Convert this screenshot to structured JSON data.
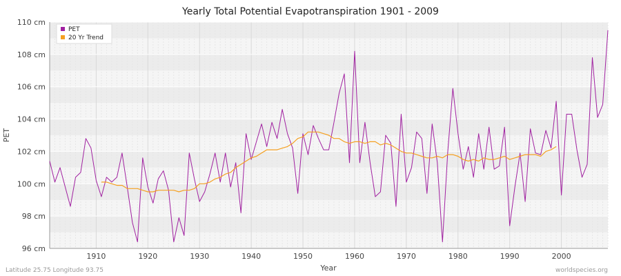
{
  "chart_data": {
    "type": "line",
    "title": "Yearly Total Potential Evapotranspiration 1901 - 2009",
    "xlabel": "Year",
    "ylabel": "PET",
    "xlim": [
      1901,
      2009
    ],
    "ylim": [
      96,
      110
    ],
    "y_unit": "cm",
    "y_ticks": [
      96,
      98,
      100,
      102,
      104,
      106,
      108,
      110
    ],
    "x_ticks": [
      1910,
      1920,
      1930,
      1940,
      1950,
      1960,
      1970,
      1980,
      1990,
      2000
    ],
    "grid": true,
    "legend_position": "top-left",
    "series": [
      {
        "name": "PET",
        "color": "#a020a0",
        "x": [
          1901,
          1902,
          1903,
          1904,
          1905,
          1906,
          1907,
          1908,
          1909,
          1910,
          1911,
          1912,
          1913,
          1914,
          1915,
          1916,
          1917,
          1918,
          1919,
          1920,
          1921,
          1922,
          1923,
          1924,
          1925,
          1926,
          1927,
          1928,
          1929,
          1930,
          1931,
          1932,
          1933,
          1934,
          1935,
          1936,
          1937,
          1938,
          1939,
          1940,
          1941,
          1942,
          1943,
          1944,
          1945,
          1946,
          1947,
          1948,
          1949,
          1950,
          1951,
          1952,
          1953,
          1954,
          1955,
          1956,
          1957,
          1958,
          1959,
          1960,
          1961,
          1962,
          1963,
          1964,
          1965,
          1966,
          1967,
          1968,
          1969,
          1970,
          1971,
          1972,
          1973,
          1974,
          1975,
          1976,
          1977,
          1978,
          1979,
          1980,
          1981,
          1982,
          1983,
          1984,
          1985,
          1986,
          1987,
          1988,
          1989,
          1990,
          1991,
          1992,
          1993,
          1994,
          1995,
          1996,
          1997,
          1998,
          1999,
          2000,
          2001,
          2002,
          2003,
          2004,
          2005,
          2006,
          2007,
          2008,
          2009
        ],
        "values": [
          101.4,
          100.1,
          101.0,
          99.8,
          98.6,
          100.4,
          100.7,
          102.8,
          102.2,
          100.2,
          99.2,
          100.4,
          100.1,
          100.4,
          101.9,
          99.8,
          97.6,
          96.4,
          101.6,
          99.8,
          98.8,
          100.3,
          100.8,
          99.6,
          96.4,
          97.9,
          96.8,
          101.9,
          100.3,
          98.9,
          99.5,
          100.6,
          101.9,
          100.1,
          101.9,
          99.8,
          101.3,
          98.2,
          103.1,
          101.5,
          102.6,
          103.7,
          102.3,
          103.8,
          102.8,
          104.6,
          103.1,
          102.2,
          99.4,
          103.1,
          101.8,
          103.6,
          102.8,
          102.1,
          102.1,
          103.8,
          105.6,
          106.8,
          101.3,
          108.2,
          101.3,
          103.8,
          101.3,
          99.2,
          99.5,
          103.0,
          102.5,
          98.6,
          104.3,
          100.1,
          101.0,
          103.2,
          102.8,
          99.4,
          103.7,
          101.3,
          96.4,
          101.9,
          105.9,
          103.1,
          100.9,
          102.3,
          100.4,
          103.1,
          100.9,
          103.5,
          100.9,
          101.1,
          103.5,
          97.4,
          99.8,
          101.9,
          98.9,
          103.4,
          101.9,
          101.8,
          103.3,
          102.2,
          105.1,
          99.3,
          104.3,
          104.3,
          102.1,
          100.4,
          101.2,
          107.8,
          104.1,
          104.9,
          109.5
        ]
      },
      {
        "name": "20 Yr Trend",
        "color": "#f5a020",
        "x": [
          1911,
          1912,
          1913,
          1914,
          1915,
          1916,
          1917,
          1918,
          1919,
          1920,
          1921,
          1922,
          1923,
          1924,
          1925,
          1926,
          1927,
          1928,
          1929,
          1930,
          1931,
          1932,
          1933,
          1934,
          1935,
          1936,
          1937,
          1938,
          1939,
          1940,
          1941,
          1942,
          1943,
          1944,
          1945,
          1946,
          1947,
          1948,
          1949,
          1950,
          1951,
          1952,
          1953,
          1954,
          1955,
          1956,
          1957,
          1958,
          1959,
          1960,
          1961,
          1962,
          1963,
          1964,
          1965,
          1966,
          1967,
          1968,
          1969,
          1970,
          1971,
          1972,
          1973,
          1974,
          1975,
          1976,
          1977,
          1978,
          1979,
          1980,
          1981,
          1982,
          1983,
          1984,
          1985,
          1986,
          1987,
          1988,
          1989,
          1990,
          1991,
          1992,
          1993,
          1994,
          1995,
          1996,
          1997,
          1998,
          1999
        ],
        "values": [
          100.1,
          100.1,
          100.0,
          99.9,
          99.9,
          99.7,
          99.7,
          99.7,
          99.6,
          99.5,
          99.5,
          99.6,
          99.6,
          99.6,
          99.6,
          99.5,
          99.6,
          99.6,
          99.7,
          100.0,
          100.0,
          100.1,
          100.3,
          100.4,
          100.6,
          100.7,
          101.0,
          101.2,
          101.4,
          101.6,
          101.7,
          101.9,
          102.1,
          102.1,
          102.1,
          102.2,
          102.3,
          102.5,
          102.8,
          102.9,
          103.2,
          103.2,
          103.2,
          103.1,
          103.0,
          102.8,
          102.8,
          102.6,
          102.5,
          102.6,
          102.6,
          102.5,
          102.6,
          102.6,
          102.4,
          102.5,
          102.4,
          102.2,
          102.0,
          101.9,
          101.9,
          101.8,
          101.7,
          101.6,
          101.6,
          101.7,
          101.6,
          101.8,
          101.8,
          101.7,
          101.5,
          101.4,
          101.5,
          101.4,
          101.6,
          101.5,
          101.5,
          101.6,
          101.7,
          101.5,
          101.6,
          101.7,
          101.8,
          101.8,
          101.8,
          101.7,
          102.0,
          102.1,
          102.3
        ]
      }
    ]
  },
  "footer": {
    "left": "Latitude 25.75 Longitude 93.75",
    "right": "worldspecies.org"
  }
}
